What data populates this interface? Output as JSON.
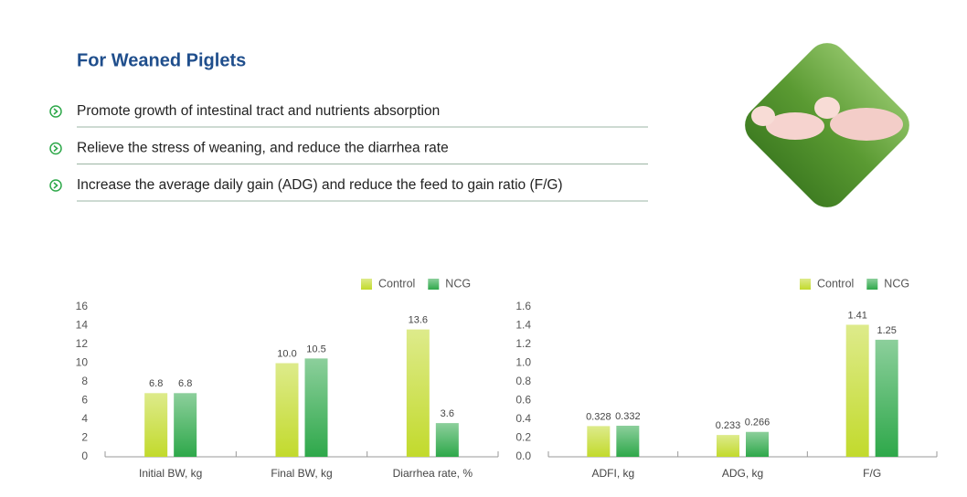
{
  "header": {
    "title": "For Weaned Piglets"
  },
  "bullets": [
    "Promote growth of intestinal tract and nutrients absorption",
    "Relieve the stress of weaning, and reduce the diarrhea rate",
    "Increase the average daily gain (ADG) and reduce the feed to gain ratio (F/G)"
  ],
  "chart_data": [
    {
      "type": "bar",
      "categories": [
        "Initial BW, kg",
        "Final BW, kg",
        "Diarrhea rate, %"
      ],
      "series": [
        {
          "name": "Control",
          "color": "#c2da2c",
          "values": [
            6.8,
            10.0,
            13.6
          ],
          "value_labels": [
            "6.8",
            "10.0",
            "13.6"
          ]
        },
        {
          "name": "NCG",
          "color": "#2ea84a",
          "values": [
            6.8,
            10.5,
            3.6
          ],
          "value_labels": [
            "6.8",
            "10.5",
            "3.6"
          ]
        }
      ],
      "ylim": [
        0,
        16
      ],
      "yticks": [
        0,
        2,
        4,
        6,
        8,
        10,
        12,
        14,
        16
      ],
      "legend": "top-right",
      "grid": false
    },
    {
      "type": "bar",
      "categories": [
        "ADFI, kg",
        "ADG, kg",
        "F/G"
      ],
      "series": [
        {
          "name": "Control",
          "color": "#c2da2c",
          "values": [
            0.328,
            0.233,
            1.41
          ],
          "value_labels": [
            "0.328",
            "0.233",
            "1.41"
          ]
        },
        {
          "name": "NCG",
          "color": "#2ea84a",
          "values": [
            0.332,
            0.266,
            1.25
          ],
          "value_labels": [
            "0.332",
            "0.266",
            "1.25"
          ]
        }
      ],
      "ylim": [
        0,
        1.6
      ],
      "yticks": [
        {
          "value": 0,
          "label": "0.0"
        },
        0.2,
        0.4,
        0.6,
        0.8,
        {
          "value": 1,
          "label": "1.0"
        },
        1.2,
        1.4,
        1.6
      ],
      "legend": "top-right",
      "grid": false
    }
  ]
}
